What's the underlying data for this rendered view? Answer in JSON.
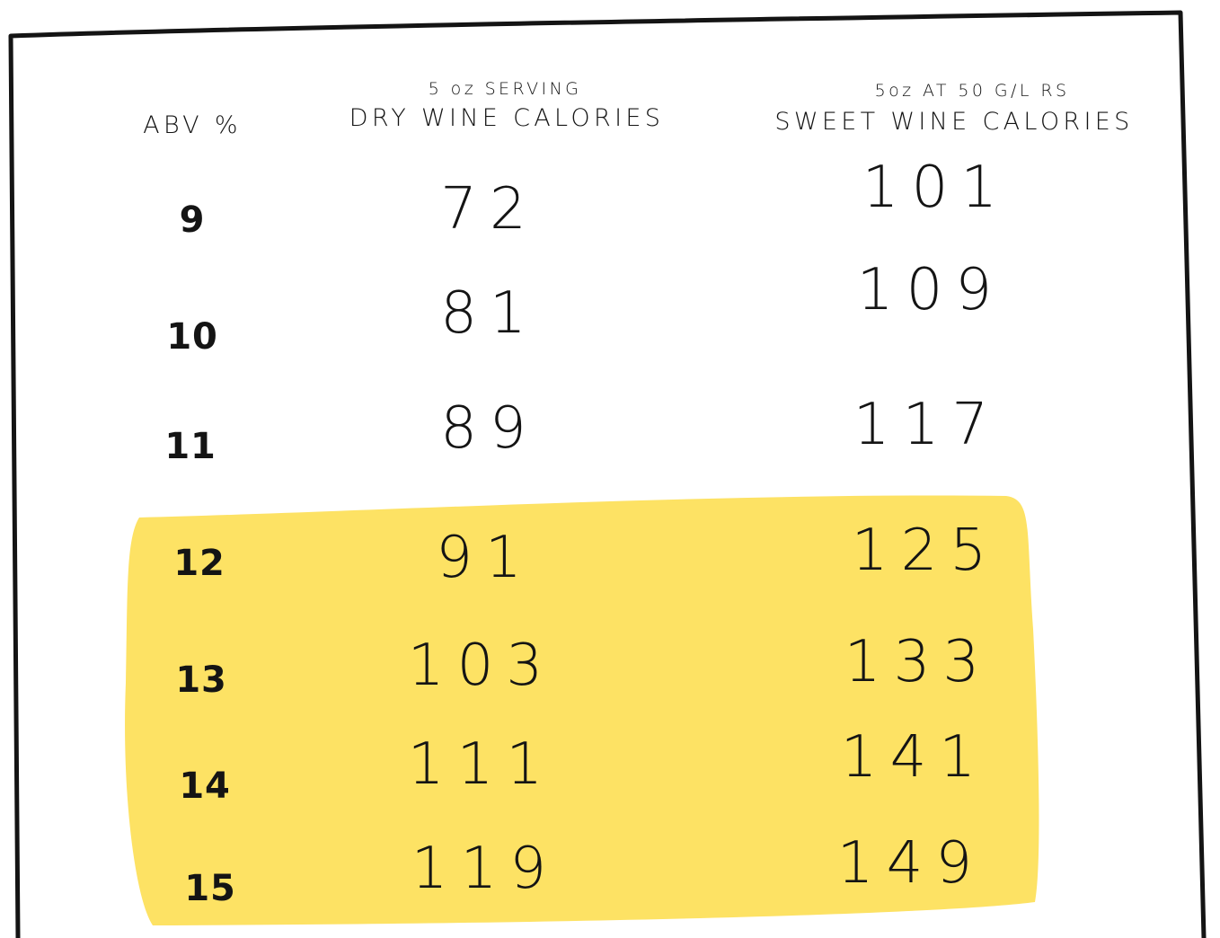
{
  "headers": {
    "abv": "ABV %",
    "dry_sub": "5 oz SERVING",
    "dry_main": "DRY WINE CALORIES",
    "sweet_sub": "5oz AT 50 G/L RS",
    "sweet_main": "SWEET WINE CALORIES"
  },
  "rows": [
    {
      "abv": "9",
      "dry": "72",
      "sweet": "101",
      "highlighted": false
    },
    {
      "abv": "10",
      "dry": "81",
      "sweet": "109",
      "highlighted": false
    },
    {
      "abv": "11",
      "dry": "89",
      "sweet": "117",
      "highlighted": false
    },
    {
      "abv": "12",
      "dry": "91",
      "sweet": "125",
      "highlighted": true
    },
    {
      "abv": "13",
      "dry": "103",
      "sweet": "133",
      "highlighted": true
    },
    {
      "abv": "14",
      "dry": "111",
      "sweet": "141",
      "highlighted": true
    },
    {
      "abv": "15",
      "dry": "119",
      "sweet": "149",
      "highlighted": true
    }
  ],
  "colors": {
    "highlight": "#FDE264",
    "ink": "#141414"
  }
}
